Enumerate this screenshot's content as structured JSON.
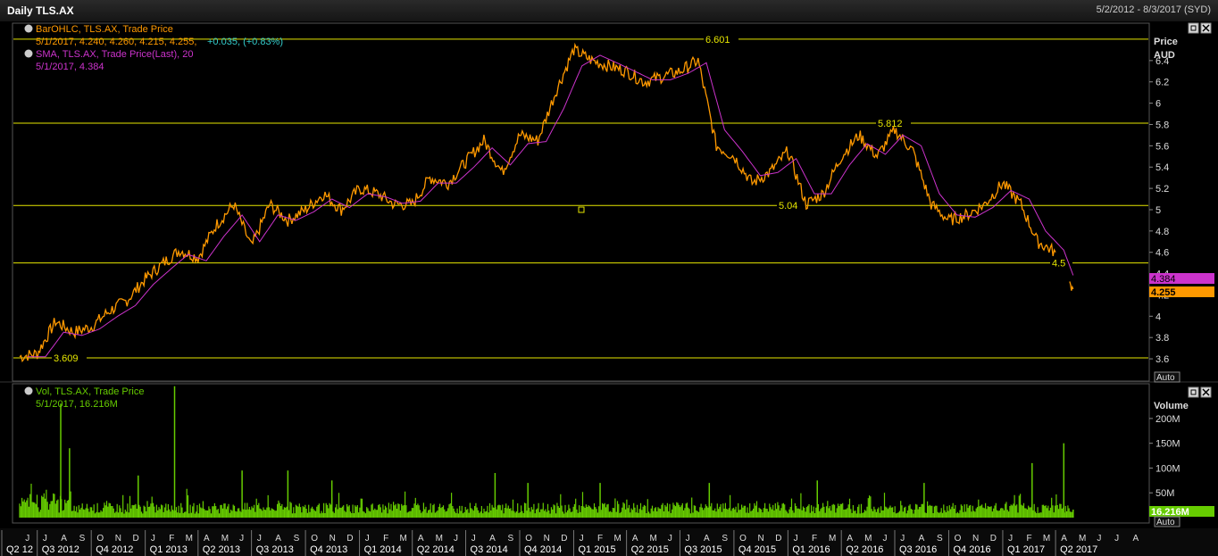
{
  "window": {
    "title": "Daily TLS.AX",
    "date_range": "5/2/2012 - 8/3/2017 (SYD)"
  },
  "price_panel": {
    "legend1_name": "BarOHLC, TLS.AX, Trade Price",
    "legend1_values": "5/1/2017, 4.240, 4.260, 4.215, 4.255,",
    "legend1_change": "+0.035, (+0.83%)",
    "legend2_name": "SMA, TLS.AX, Trade Price(Last),  20",
    "legend2_values": "5/1/2017, 4.384",
    "axis_title": "Price",
    "axis_unit": "AUD",
    "last_sma_tag": "4.384",
    "last_price_tag": "4.255",
    "auto_label": "Auto"
  },
  "volume_panel": {
    "legend_name": "Vol, TLS.AX, Trade Price",
    "legend_values": "5/1/2017, 16.216M",
    "axis_title": "Volume",
    "last_volume_tag": "16.216M",
    "auto_label": "Auto"
  },
  "colors": {
    "price": "#ff9900",
    "sma": "#cc33cc",
    "hline": "#e6e600",
    "volume": "#66cc00",
    "change": "#33cccc"
  },
  "chart_data": {
    "type": "line",
    "price_ylim": [
      3.5,
      6.6
    ],
    "price_yticks": [
      "6.4",
      "6.2",
      "6",
      "5.8",
      "5.6",
      "5.4",
      "5.2",
      "5",
      "4.8",
      "4.6",
      "4.4",
      "4.2",
      "4",
      "3.8",
      "3.6"
    ],
    "volume_yticks": [
      "200M",
      "150M",
      "100M",
      "50M"
    ],
    "horizontal_lines": [
      {
        "value": 6.601,
        "label": "6.601"
      },
      {
        "value": 5.812,
        "label": "5.812"
      },
      {
        "value": 5.04,
        "label": "5.04"
      },
      {
        "value": 4.5,
        "label": "4.5"
      },
      {
        "value": 3.609,
        "label": "3.609"
      }
    ],
    "months": [
      "J",
      "J",
      "A",
      "S",
      "O",
      "N",
      "D",
      "J",
      "F",
      "M",
      "A",
      "M",
      "J",
      "J",
      "A",
      "S",
      "O",
      "N",
      "D",
      "J",
      "F",
      "M",
      "A",
      "M",
      "J",
      "J",
      "A",
      "S",
      "O",
      "N",
      "D",
      "J",
      "F",
      "M",
      "A",
      "M",
      "J",
      "J",
      "A",
      "S",
      "O",
      "N",
      "D",
      "J",
      "F",
      "M",
      "A",
      "M",
      "J",
      "J",
      "A",
      "S",
      "O",
      "N",
      "D",
      "J",
      "F",
      "M",
      "A",
      "M",
      "J",
      "J",
      "A"
    ],
    "quarters": [
      "Q2 12",
      "Q3 2012",
      "Q4 2012",
      "Q1 2013",
      "Q2 2013",
      "Q3 2013",
      "Q4 2013",
      "Q1 2014",
      "Q2 2014",
      "Q3 2014",
      "Q4 2014",
      "Q1 2015",
      "Q2 2015",
      "Q3 2015",
      "Q4 2015",
      "Q1 2016",
      "Q2 2016",
      "Q3 2016",
      "Q4 2016",
      "Q1 2017",
      "Q2 2017"
    ],
    "series": [
      {
        "name": "BarOHLC, TLS.AX, Trade Price",
        "points": [
          [
            "2012-06-01",
            3.62
          ],
          [
            "2012-07-01",
            3.65
          ],
          [
            "2012-08-01",
            3.95
          ],
          [
            "2012-09-01",
            3.85
          ],
          [
            "2012-10-01",
            3.9
          ],
          [
            "2012-11-01",
            4.05
          ],
          [
            "2012-12-01",
            4.15
          ],
          [
            "2013-01-01",
            4.35
          ],
          [
            "2013-02-01",
            4.5
          ],
          [
            "2013-03-01",
            4.62
          ],
          [
            "2013-04-01",
            4.55
          ],
          [
            "2013-05-01",
            4.85
          ],
          [
            "2013-06-01",
            5.05
          ],
          [
            "2013-07-01",
            4.65
          ],
          [
            "2013-08-01",
            5.05
          ],
          [
            "2013-09-01",
            4.9
          ],
          [
            "2013-10-01",
            5.0
          ],
          [
            "2013-11-01",
            5.15
          ],
          [
            "2013-12-01",
            5.0
          ],
          [
            "2014-01-01",
            5.2
          ],
          [
            "2014-02-01",
            5.15
          ],
          [
            "2014-03-01",
            5.05
          ],
          [
            "2014-04-01",
            5.05
          ],
          [
            "2014-05-01",
            5.3
          ],
          [
            "2014-06-01",
            5.25
          ],
          [
            "2014-07-01",
            5.45
          ],
          [
            "2014-08-01",
            5.65
          ],
          [
            "2014-09-01",
            5.35
          ],
          [
            "2014-10-01",
            5.7
          ],
          [
            "2014-11-01",
            5.65
          ],
          [
            "2014-12-01",
            6.1
          ],
          [
            "2015-01-01",
            6.5
          ],
          [
            "2015-02-01",
            6.4
          ],
          [
            "2015-03-01",
            6.35
          ],
          [
            "2015-04-01",
            6.3
          ],
          [
            "2015-05-01",
            6.2
          ],
          [
            "2015-06-01",
            6.25
          ],
          [
            "2015-07-01",
            6.3
          ],
          [
            "2015-08-01",
            6.4
          ],
          [
            "2015-09-01",
            5.6
          ],
          [
            "2015-10-01",
            5.5
          ],
          [
            "2015-11-01",
            5.25
          ],
          [
            "2015-12-01",
            5.35
          ],
          [
            "2016-01-01",
            5.55
          ],
          [
            "2016-02-01",
            5.05
          ],
          [
            "2016-03-01",
            5.15
          ],
          [
            "2016-04-01",
            5.5
          ],
          [
            "2016-05-01",
            5.7
          ],
          [
            "2016-06-01",
            5.5
          ],
          [
            "2016-07-01",
            5.75
          ],
          [
            "2016-08-01",
            5.55
          ],
          [
            "2016-09-01",
            5.05
          ],
          [
            "2016-10-01",
            4.9
          ],
          [
            "2016-11-01",
            4.95
          ],
          [
            "2016-12-01",
            5.05
          ],
          [
            "2017-01-01",
            5.25
          ],
          [
            "2017-02-01",
            5.05
          ],
          [
            "2017-03-01",
            4.7
          ],
          [
            "2017-04-01",
            4.6
          ],
          [
            "2017-04-25",
            4.3
          ],
          [
            "2017-05-01",
            4.255
          ]
        ]
      },
      {
        "name": "SMA, TLS.AX, Trade Price(Last),  20",
        "points": [
          [
            "2012-06-15",
            3.62
          ],
          [
            "2012-07-15",
            3.62
          ],
          [
            "2012-08-15",
            3.85
          ],
          [
            "2012-09-15",
            3.82
          ],
          [
            "2012-10-15",
            3.88
          ],
          [
            "2012-11-15",
            4.0
          ],
          [
            "2012-12-15",
            4.1
          ],
          [
            "2013-01-15",
            4.3
          ],
          [
            "2013-02-15",
            4.45
          ],
          [
            "2013-03-15",
            4.58
          ],
          [
            "2013-04-15",
            4.52
          ],
          [
            "2013-05-15",
            4.75
          ],
          [
            "2013-06-15",
            4.95
          ],
          [
            "2013-07-15",
            4.7
          ],
          [
            "2013-08-15",
            4.95
          ],
          [
            "2013-09-15",
            4.9
          ],
          [
            "2013-10-15",
            4.98
          ],
          [
            "2013-11-15",
            5.1
          ],
          [
            "2013-12-15",
            5.02
          ],
          [
            "2014-01-15",
            5.15
          ],
          [
            "2014-02-15",
            5.12
          ],
          [
            "2014-03-15",
            5.06
          ],
          [
            "2014-04-15",
            5.08
          ],
          [
            "2014-05-15",
            5.25
          ],
          [
            "2014-06-15",
            5.25
          ],
          [
            "2014-07-15",
            5.4
          ],
          [
            "2014-08-15",
            5.58
          ],
          [
            "2014-09-15",
            5.42
          ],
          [
            "2014-10-15",
            5.62
          ],
          [
            "2014-11-15",
            5.64
          ],
          [
            "2014-12-15",
            5.95
          ],
          [
            "2015-01-15",
            6.35
          ],
          [
            "2015-02-15",
            6.45
          ],
          [
            "2015-03-15",
            6.38
          ],
          [
            "2015-04-15",
            6.3
          ],
          [
            "2015-05-15",
            6.22
          ],
          [
            "2015-06-15",
            6.22
          ],
          [
            "2015-07-15",
            6.28
          ],
          [
            "2015-08-15",
            6.38
          ],
          [
            "2015-09-15",
            5.75
          ],
          [
            "2015-10-15",
            5.55
          ],
          [
            "2015-11-15",
            5.32
          ],
          [
            "2015-12-15",
            5.35
          ],
          [
            "2016-01-15",
            5.48
          ],
          [
            "2016-02-15",
            5.15
          ],
          [
            "2016-03-15",
            5.15
          ],
          [
            "2016-04-15",
            5.42
          ],
          [
            "2016-05-15",
            5.62
          ],
          [
            "2016-06-15",
            5.52
          ],
          [
            "2016-07-15",
            5.7
          ],
          [
            "2016-08-15",
            5.6
          ],
          [
            "2016-09-15",
            5.15
          ],
          [
            "2016-10-15",
            4.95
          ],
          [
            "2016-11-15",
            4.93
          ],
          [
            "2016-12-15",
            5.02
          ],
          [
            "2017-01-15",
            5.18
          ],
          [
            "2017-02-15",
            5.1
          ],
          [
            "2017-03-15",
            4.8
          ],
          [
            "2017-04-15",
            4.62
          ],
          [
            "2017-05-01",
            4.384
          ]
        ]
      },
      {
        "name": "Vol, TLS.AX, Trade Price",
        "points": [
          [
            "2012-08-10",
            230
          ],
          [
            "2012-08-25",
            140
          ],
          [
            "2012-12-20",
            85
          ],
          [
            "2013-02-20",
            265
          ],
          [
            "2013-06-15",
            95
          ],
          [
            "2013-09-01",
            95
          ],
          [
            "2013-11-15",
            75
          ],
          [
            "2014-08-20",
            90
          ],
          [
            "2014-10-15",
            70
          ],
          [
            "2015-02-15",
            70
          ],
          [
            "2015-08-20",
            70
          ],
          [
            "2016-02-20",
            75
          ],
          [
            "2016-08-20",
            70
          ],
          [
            "2017-02-20",
            110
          ],
          [
            "2017-04-15",
            150
          ],
          [
            "2017-05-01",
            16.216
          ]
        ]
      }
    ]
  }
}
